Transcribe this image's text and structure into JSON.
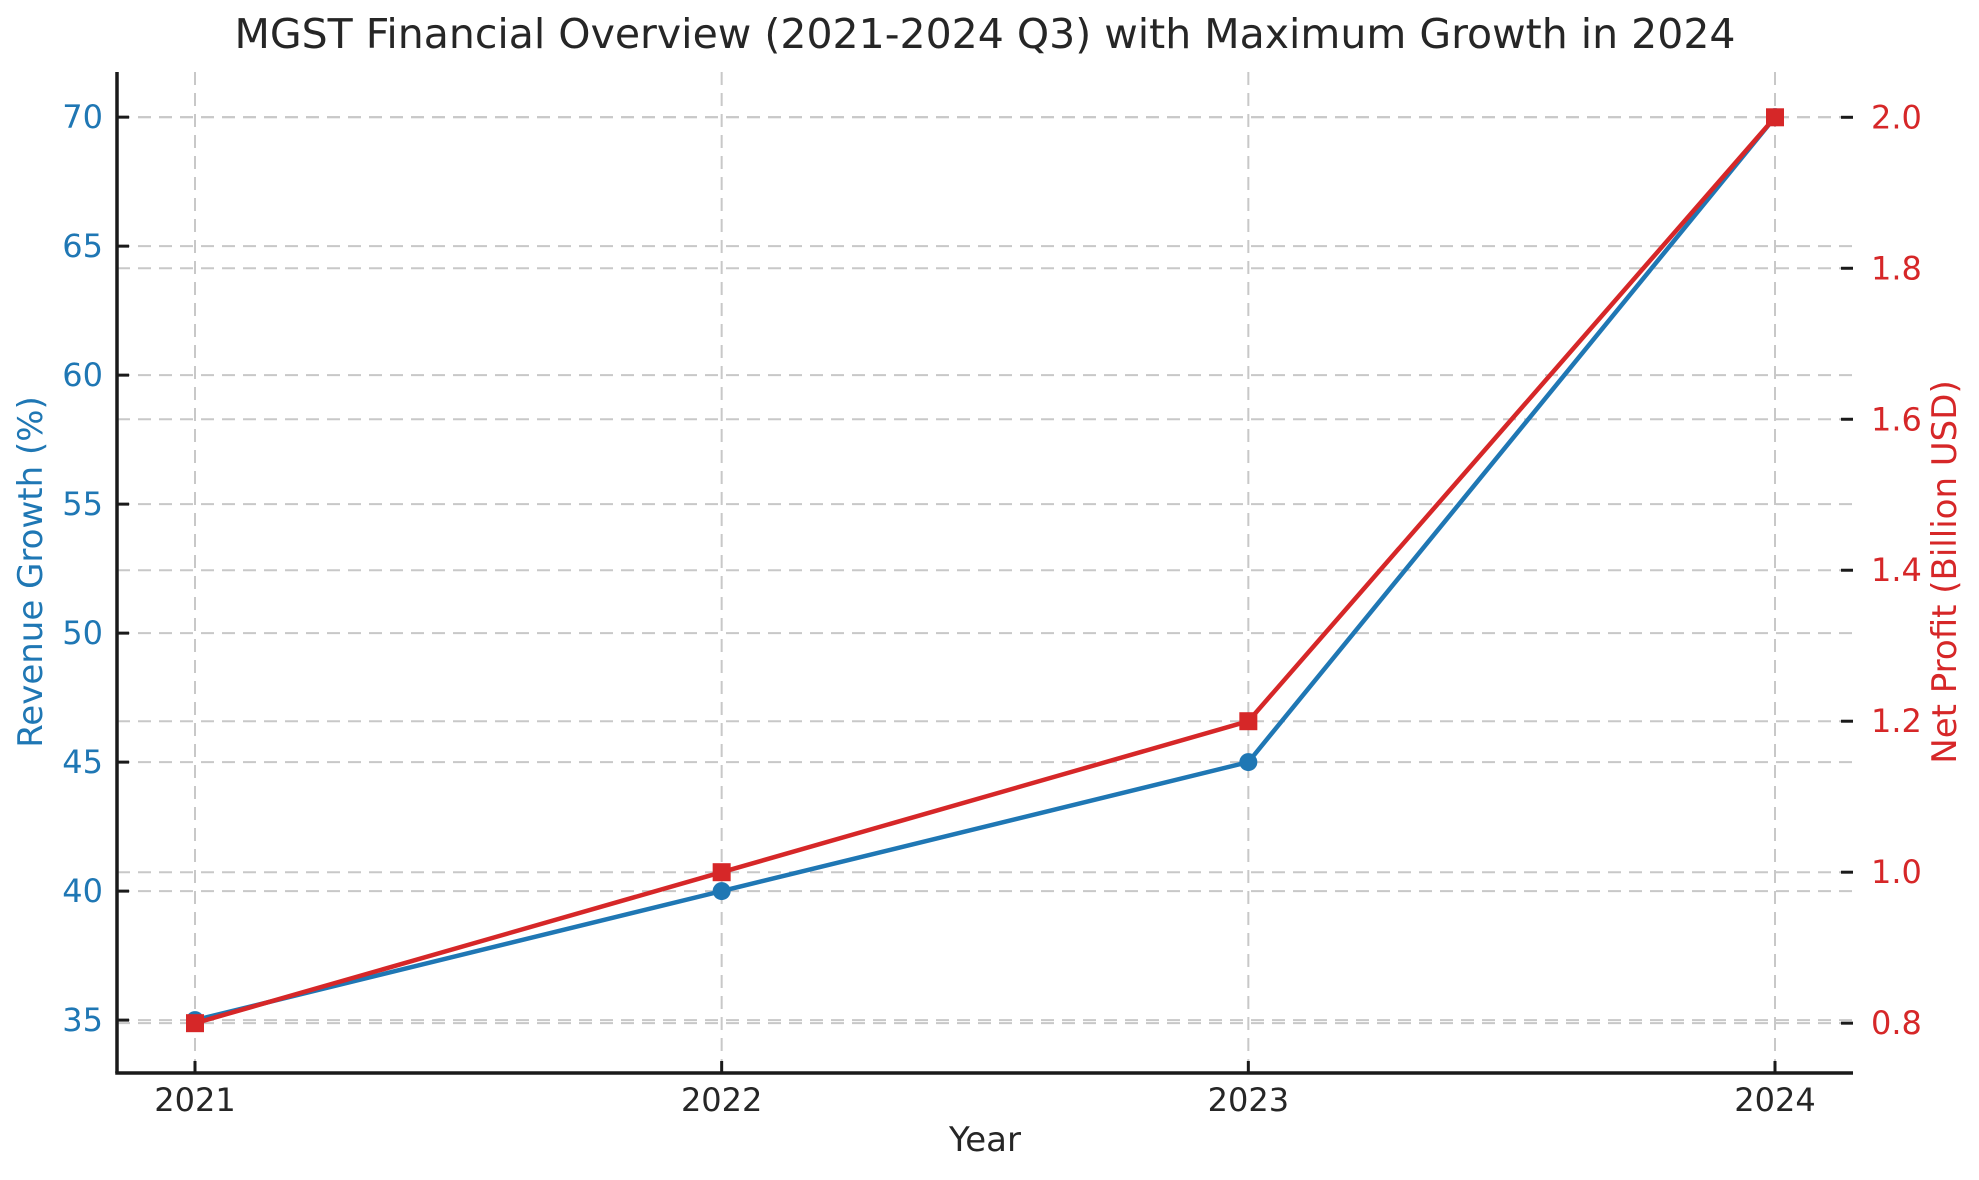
{
  "figure": {
    "title": "MGST Financial Overview (2021-2024 Q3) with Maximum Growth in 2024"
  },
  "chart_data": {
    "type": "line",
    "title": "MGST Financial Overview (2021-2024 Q3) with Maximum Growth in 2024",
    "xlabel": "Year",
    "x": [
      2021,
      2022,
      2023,
      2024
    ],
    "x_tick_labels": [
      "2021",
      "2022",
      "2023",
      "2024"
    ],
    "series": [
      {
        "name": "Revenue Growth (%)",
        "axis": "left",
        "color": "#1f77b4",
        "marker": "circle",
        "values": [
          35,
          40,
          45,
          70
        ]
      },
      {
        "name": "Net Profit (Billion USD)",
        "axis": "right",
        "color": "#d62728",
        "marker": "square",
        "values": [
          0.8,
          1.0,
          1.2,
          2.0
        ]
      }
    ],
    "axes": {
      "left": {
        "label": "Revenue Growth (%)",
        "color": "#1f77b4",
        "ticks": [
          "35",
          "40",
          "45",
          "50",
          "55",
          "60",
          "65",
          "70"
        ],
        "range": [
          32.95,
          71.75
        ]
      },
      "right": {
        "label": "Net Profit (Billion USD)",
        "color": "#d62728",
        "ticks": [
          "0.8",
          "1.0",
          "1.2",
          "1.4",
          "1.6",
          "1.8",
          "2.0"
        ],
        "range": [
          0.734,
          2.06
        ]
      },
      "x": {
        "label": "Year",
        "color": "#262626"
      }
    },
    "grid": {
      "visible": true,
      "style": "dashed",
      "color": "#c8c8c8"
    },
    "spine_color": "#1a1a1a",
    "tick_color": "#1a1a1a",
    "background": "#ffffff",
    "legend": "none"
  }
}
